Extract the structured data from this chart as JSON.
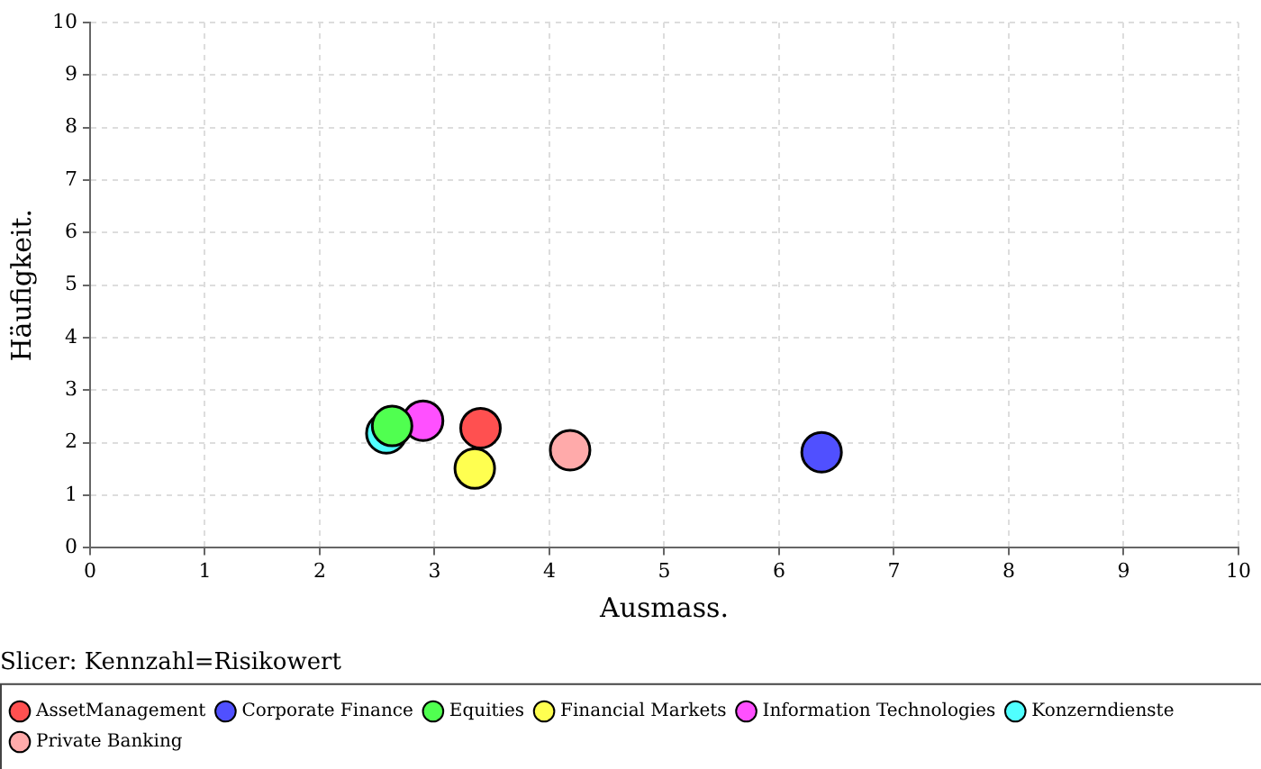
{
  "chart_data": {
    "type": "scatter",
    "xlabel": "Ausmass.",
    "ylabel": "Häufigkeit.",
    "legend_title": "Slicer: Kennzahl=Risikowert",
    "xlim": [
      0,
      10
    ],
    "ylim": [
      0,
      10
    ],
    "xticks": [
      0,
      1,
      2,
      3,
      4,
      5,
      6,
      7,
      8,
      9,
      10
    ],
    "yticks": [
      0,
      1,
      2,
      3,
      4,
      5,
      6,
      7,
      8,
      9,
      10
    ],
    "grid": true,
    "legend": "bottom",
    "marker": "circle",
    "series": [
      {
        "name": "AssetManagement",
        "color": "#ff5050",
        "x": [
          3.4
        ],
        "values": [
          2.28
        ]
      },
      {
        "name": "Corporate Finance",
        "color": "#5050ff",
        "x": [
          6.37
        ],
        "values": [
          1.82
        ]
      },
      {
        "name": "Equities",
        "color": "#50ff50",
        "x": [
          2.63
        ],
        "values": [
          2.32
        ]
      },
      {
        "name": "Financial Markets",
        "color": "#ffff50",
        "x": [
          3.35
        ],
        "values": [
          1.51
        ]
      },
      {
        "name": "Information Technologies",
        "color": "#ff50ff",
        "x": [
          2.9
        ],
        "values": [
          2.42
        ]
      },
      {
        "name": "Konzerndienste",
        "color": "#50ffff",
        "x": [
          2.58
        ],
        "values": [
          2.18
        ]
      },
      {
        "name": "Private Banking",
        "color": "#ffaaaa",
        "x": [
          4.18
        ],
        "values": [
          1.86
        ]
      }
    ]
  }
}
